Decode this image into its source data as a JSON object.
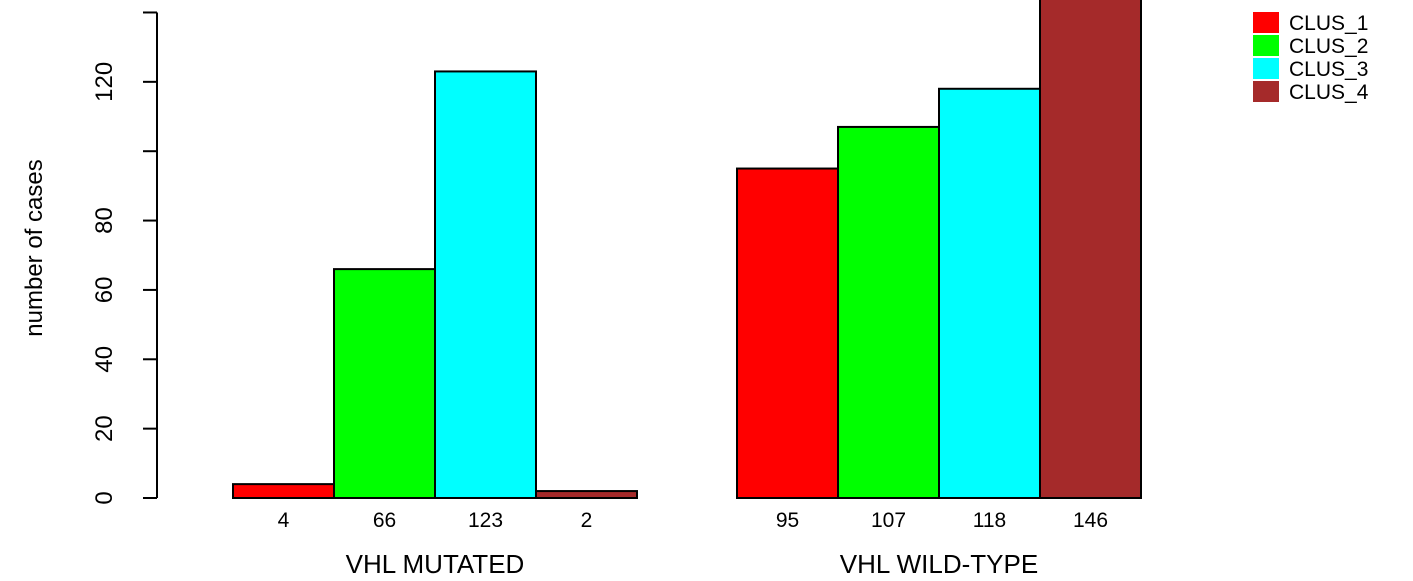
{
  "chart_data": {
    "type": "bar",
    "ylabel": "number of cases",
    "ylim": [
      0,
      146
    ],
    "yticks": [
      0,
      20,
      40,
      60,
      80,
      100,
      120,
      140
    ],
    "ytick_labels": [
      "0",
      "20",
      "40",
      "60",
      "80",
      "",
      "120",
      ""
    ],
    "groups": [
      {
        "label": "VHL MUTATED",
        "values": [
          4,
          66,
          123,
          2
        ]
      },
      {
        "label": "VHL WILD-TYPE",
        "values": [
          95,
          107,
          118,
          146
        ]
      }
    ],
    "series": [
      {
        "name": "CLUS_1",
        "color": "#ff0000"
      },
      {
        "name": "CLUS_2",
        "color": "#00ff00"
      },
      {
        "name": "CLUS_3",
        "color": "#00ffff"
      },
      {
        "name": "CLUS_4",
        "color": "#a52a2a"
      }
    ],
    "legend_position": "top-right"
  }
}
